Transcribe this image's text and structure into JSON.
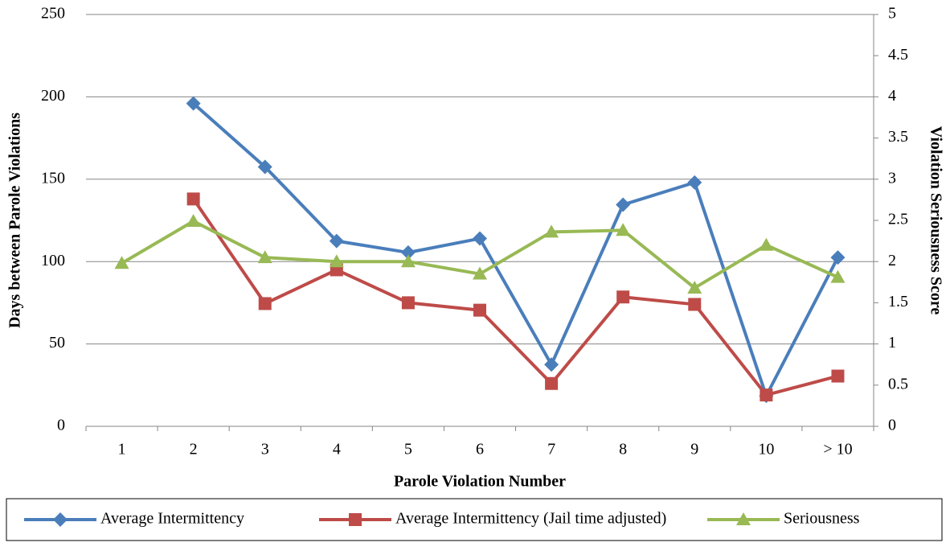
{
  "chart_data": {
    "type": "line",
    "x_label": "Parole Violation Number",
    "y_label": "Days between Parole Violations",
    "y2_label": "Violation Seriousness Score",
    "categories": [
      "1",
      "2",
      "3",
      "4",
      "5",
      "6",
      "7",
      "8",
      "9",
      "10",
      "> 10"
    ],
    "series": [
      {
        "name": "Average Intermittency",
        "color": "#4a7ebb",
        "marker": "diamond",
        "values": [
          null,
          196,
          157.5,
          112.5,
          105.5,
          114,
          37.5,
          134.5,
          148,
          18.5,
          102.5
        ]
      },
      {
        "name": "Average Intermittency (Jail time adjusted)",
        "color": "#be4b48",
        "marker": "square",
        "values": [
          null,
          138,
          74.5,
          95,
          75,
          70.5,
          26,
          78.5,
          74,
          19,
          30.5
        ]
      },
      {
        "name": "Seriousness",
        "color": "#98b954",
        "marker": "triangle",
        "axis": "y2",
        "values": [
          1.98,
          2.49,
          2.05,
          2.0,
          2.0,
          1.85,
          2.36,
          2.38,
          1.68,
          2.2,
          1.81
        ]
      }
    ],
    "ylim": [
      0,
      250
    ],
    "yticks": [
      0,
      50,
      100,
      150,
      200,
      250
    ],
    "y2lim": [
      0,
      5
    ],
    "y2ticks": [
      0,
      0.5,
      1,
      1.5,
      2,
      2.5,
      3,
      3.5,
      4,
      4.5,
      5
    ],
    "grid": true,
    "legend": "bottom"
  }
}
